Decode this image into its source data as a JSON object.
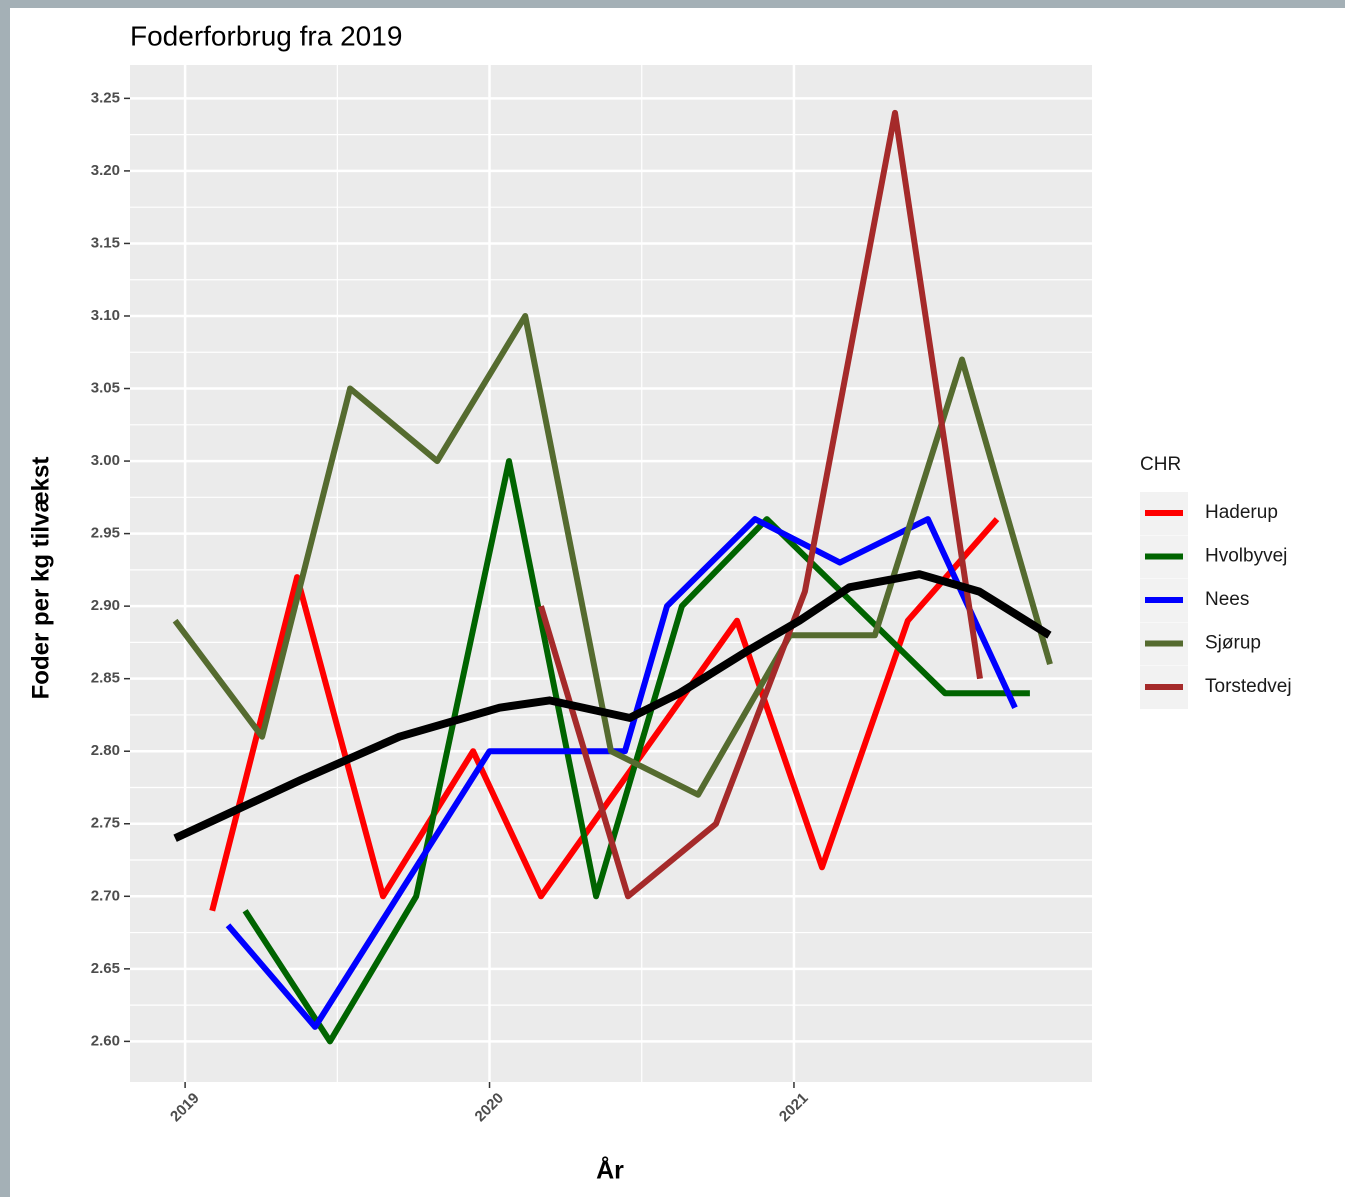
{
  "chart_data": {
    "type": "line",
    "title": "Foderforbrug fra 2019",
    "x_label": "År",
    "y_label": "Foder per kg tilvækst",
    "legend_title": "CHR",
    "xlim": [
      2018.819,
      2021.979
    ],
    "xticks": [
      2019,
      2020,
      2021
    ],
    "ylim": [
      2.572,
      3.273
    ],
    "yticks": [
      {
        "value": 2.6,
        "label": "2.60"
      },
      {
        "value": 2.65,
        "label": "2.65"
      },
      {
        "value": 2.7,
        "label": "2.70"
      },
      {
        "value": 2.75,
        "label": "2.75"
      },
      {
        "value": 2.8,
        "label": "2.80"
      },
      {
        "value": 2.85,
        "label": "2.85"
      },
      {
        "value": 2.9,
        "label": "2.90"
      },
      {
        "value": 2.95,
        "label": "2.95"
      },
      {
        "value": 3.0,
        "label": "3.00"
      },
      {
        "value": 3.05,
        "label": "3.05"
      },
      {
        "value": 3.1,
        "label": "3.10"
      },
      {
        "value": 3.15,
        "label": "3.15"
      },
      {
        "value": 3.2,
        "label": "3.20"
      },
      {
        "value": 3.25,
        "label": "3.25"
      }
    ],
    "grid": true,
    "legend_position": "right",
    "series": [
      {
        "name": "Haderup",
        "color": "#ff0000",
        "x": [
          2019.089,
          2019.368,
          2019.65,
          2019.946,
          2020.169,
          2020.813,
          2021.092,
          2021.374,
          2021.667
        ],
        "values": [
          2.69,
          2.92,
          2.7,
          2.8,
          2.7,
          2.89,
          2.72,
          2.89,
          2.96
        ]
      },
      {
        "name": "Hvolbyvej",
        "color": "#006400",
        "x": [
          2019.197,
          2019.476,
          2019.759,
          2020.064,
          2020.35,
          2020.632,
          2020.911,
          2021.496,
          2021.775
        ],
        "values": [
          2.69,
          2.6,
          2.7,
          3.0,
          2.7,
          2.9,
          2.96,
          2.84,
          2.84
        ]
      },
      {
        "name": "Nees",
        "color": "#0000ff",
        "x": [
          2019.141,
          2019.427,
          2020.0,
          2020.445,
          2020.583,
          2020.872,
          2021.151,
          2021.44,
          2021.726
        ],
        "values": [
          2.68,
          2.61,
          2.8,
          2.8,
          2.9,
          2.96,
          2.93,
          2.96,
          2.83
        ]
      },
      {
        "name": "Sjørup",
        "color": "#556b2f",
        "x": [
          2018.967,
          2019.253,
          2019.542,
          2019.828,
          2020.117,
          2020.399,
          2020.685,
          2020.987,
          2021.266,
          2021.552,
          2021.841
        ],
        "values": [
          2.89,
          2.81,
          3.05,
          3.0,
          3.1,
          2.8,
          2.77,
          2.88,
          2.88,
          3.07,
          2.86
        ]
      },
      {
        "name": "Torstedvej",
        "color": "#a52a2a",
        "x": [
          2020.169,
          2020.455,
          2020.744,
          2021.036,
          2021.332,
          2021.611
        ],
        "values": [
          2.9,
          2.7,
          2.75,
          2.91,
          3.24,
          2.85
        ]
      }
    ],
    "smooth": {
      "color": "#000000",
      "x": [
        2018.967,
        2019.378,
        2019.704,
        2020.033,
        2020.197,
        2020.46,
        2020.624,
        2020.854,
        2021.018,
        2021.182,
        2021.412,
        2021.609,
        2021.839
      ],
      "values": [
        2.74,
        2.78,
        2.81,
        2.83,
        2.835,
        2.823,
        2.84,
        2.87,
        2.89,
        2.913,
        2.922,
        2.91,
        2.88
      ]
    }
  }
}
